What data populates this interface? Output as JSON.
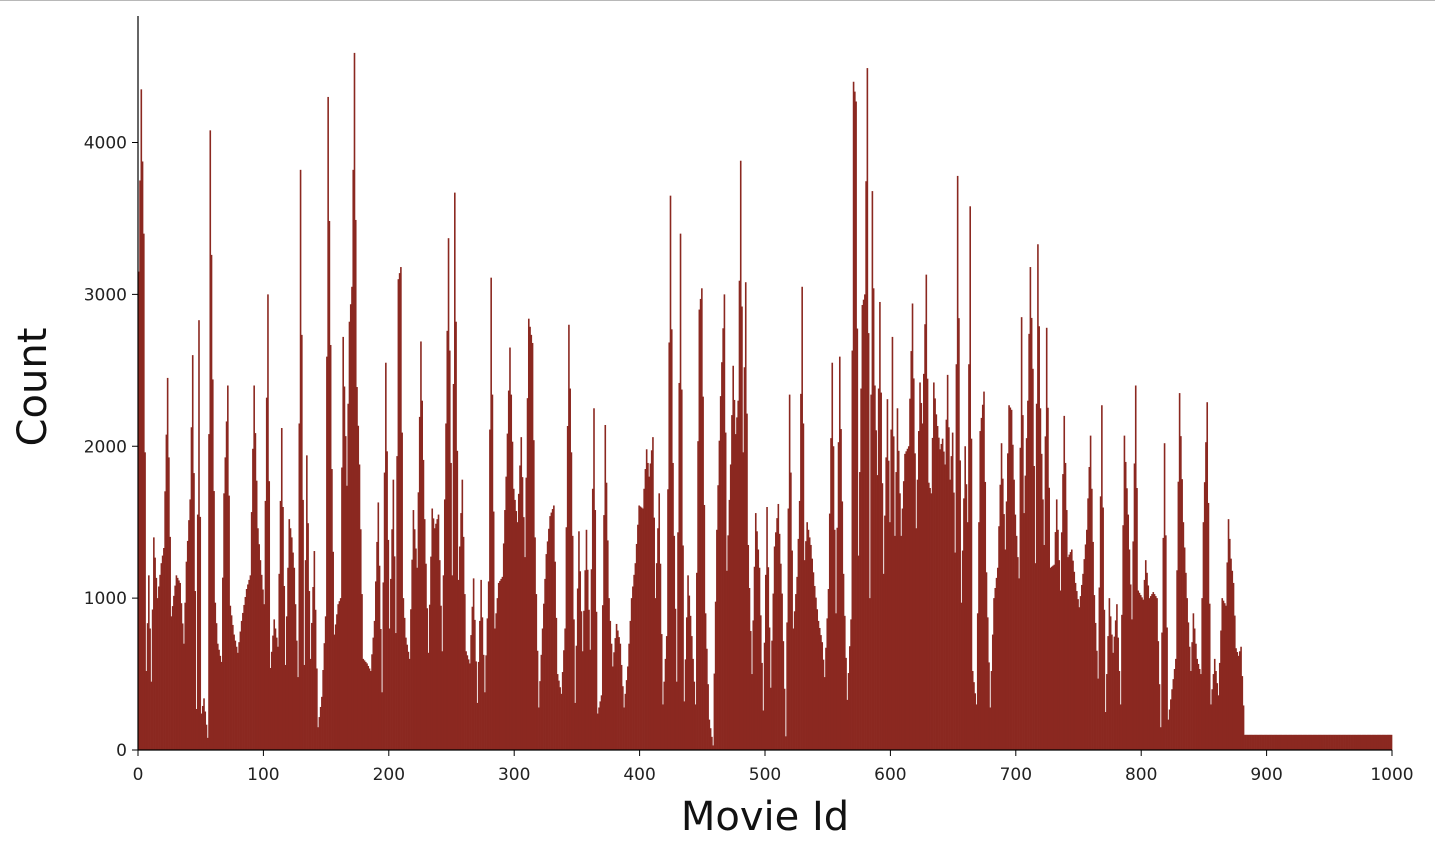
{
  "chart_data": {
    "type": "bar",
    "xlabel": "Movie Id",
    "ylabel": "Count",
    "xlim": [
      0,
      1000
    ],
    "ylim": [
      0,
      4800
    ],
    "xticks": [
      0,
      100,
      200,
      300,
      400,
      500,
      600,
      700,
      800,
      900,
      1000
    ],
    "yticks": [
      0,
      1000,
      2000,
      3000,
      4000
    ],
    "grid": false,
    "bar_color": "#8b2820",
    "anchors": [
      [
        0,
        3150
      ],
      [
        2,
        4350
      ],
      [
        4,
        3400
      ],
      [
        6,
        520
      ],
      [
        8,
        1150
      ],
      [
        10,
        450
      ],
      [
        12,
        1400
      ],
      [
        15,
        1000
      ],
      [
        18,
        1230
      ],
      [
        20,
        1330
      ],
      [
        23,
        2450
      ],
      [
        26,
        880
      ],
      [
        30,
        1150
      ],
      [
        33,
        1100
      ],
      [
        36,
        700
      ],
      [
        38,
        1240
      ],
      [
        41,
        1650
      ],
      [
        43,
        2600
      ],
      [
        46,
        270
      ],
      [
        48,
        2830
      ],
      [
        50,
        240
      ],
      [
        52,
        340
      ],
      [
        55,
        80
      ],
      [
        57,
        4080
      ],
      [
        59,
        2440
      ],
      [
        61,
        970
      ],
      [
        63,
        700
      ],
      [
        66,
        580
      ],
      [
        68,
        1690
      ],
      [
        71,
        2400
      ],
      [
        73,
        950
      ],
      [
        76,
        760
      ],
      [
        79,
        640
      ],
      [
        82,
        850
      ],
      [
        86,
        1060
      ],
      [
        89,
        1150
      ],
      [
        92,
        2400
      ],
      [
        95,
        1460
      ],
      [
        97,
        1250
      ],
      [
        100,
        960
      ],
      [
        103,
        3000
      ],
      [
        105,
        540
      ],
      [
        108,
        860
      ],
      [
        111,
        680
      ],
      [
        114,
        2120
      ],
      [
        117,
        560
      ],
      [
        120,
        1520
      ],
      [
        122,
        1400
      ],
      [
        124,
        1200
      ],
      [
        127,
        480
      ],
      [
        129,
        3820
      ],
      [
        132,
        560
      ],
      [
        134,
        1940
      ],
      [
        137,
        600
      ],
      [
        140,
        1310
      ],
      [
        143,
        150
      ],
      [
        146,
        350
      ],
      [
        149,
        880
      ],
      [
        151,
        4300
      ],
      [
        154,
        1850
      ],
      [
        156,
        760
      ],
      [
        159,
        960
      ],
      [
        161,
        1000
      ],
      [
        163,
        2720
      ],
      [
        166,
        1740
      ],
      [
        168,
        2820
      ],
      [
        170,
        3050
      ],
      [
        172,
        4590
      ],
      [
        174,
        2390
      ],
      [
        176,
        1880
      ],
      [
        179,
        600
      ],
      [
        182,
        570
      ],
      [
        185,
        520
      ],
      [
        188,
        850
      ],
      [
        191,
        1630
      ],
      [
        194,
        380
      ],
      [
        197,
        2550
      ],
      [
        200,
        800
      ],
      [
        203,
        1780
      ],
      [
        205,
        770
      ],
      [
        207,
        3100
      ],
      [
        209,
        3180
      ],
      [
        211,
        1000
      ],
      [
        213,
        740
      ],
      [
        216,
        600
      ],
      [
        219,
        1580
      ],
      [
        222,
        1200
      ],
      [
        225,
        2690
      ],
      [
        228,
        1520
      ],
      [
        231,
        640
      ],
      [
        234,
        1590
      ],
      [
        236,
        1460
      ],
      [
        239,
        1550
      ],
      [
        242,
        650
      ],
      [
        245,
        2150
      ],
      [
        247,
        3370
      ],
      [
        250,
        1150
      ],
      [
        252,
        3670
      ],
      [
        255,
        1120
      ],
      [
        258,
        1780
      ],
      [
        261,
        650
      ],
      [
        264,
        570
      ],
      [
        267,
        1130
      ],
      [
        270,
        310
      ],
      [
        273,
        1120
      ],
      [
        276,
        380
      ],
      [
        279,
        1110
      ],
      [
        281,
        3110
      ],
      [
        284,
        800
      ],
      [
        287,
        1100
      ],
      [
        290,
        1140
      ],
      [
        293,
        1800
      ],
      [
        296,
        2650
      ],
      [
        299,
        1720
      ],
      [
        302,
        1500
      ],
      [
        305,
        2060
      ],
      [
        308,
        1270
      ],
      [
        311,
        2840
      ],
      [
        314,
        2680
      ],
      [
        316,
        1400
      ],
      [
        319,
        280
      ],
      [
        322,
        800
      ],
      [
        325,
        1290
      ],
      [
        328,
        1540
      ],
      [
        331,
        1610
      ],
      [
        334,
        500
      ],
      [
        337,
        370
      ],
      [
        340,
        800
      ],
      [
        343,
        2800
      ],
      [
        345,
        1960
      ],
      [
        348,
        310
      ],
      [
        351,
        1440
      ],
      [
        354,
        650
      ],
      [
        357,
        1450
      ],
      [
        360,
        660
      ],
      [
        363,
        2250
      ],
      [
        366,
        240
      ],
      [
        369,
        360
      ],
      [
        372,
        2140
      ],
      [
        375,
        1000
      ],
      [
        378,
        550
      ],
      [
        381,
        830
      ],
      [
        384,
        700
      ],
      [
        387,
        280
      ],
      [
        390,
        550
      ],
      [
        393,
        1000
      ],
      [
        396,
        1230
      ],
      [
        399,
        1610
      ],
      [
        402,
        1590
      ],
      [
        405,
        1980
      ],
      [
        407,
        1800
      ],
      [
        410,
        2060
      ],
      [
        412,
        1000
      ],
      [
        415,
        1690
      ],
      [
        418,
        300
      ],
      [
        421,
        750
      ],
      [
        424,
        3650
      ],
      [
        426,
        1890
      ],
      [
        429,
        450
      ],
      [
        432,
        3400
      ],
      [
        435,
        320
      ],
      [
        438,
        1150
      ],
      [
        441,
        750
      ],
      [
        444,
        300
      ],
      [
        447,
        2900
      ],
      [
        449,
        3040
      ],
      [
        452,
        900
      ],
      [
        455,
        200
      ],
      [
        458,
        30
      ],
      [
        461,
        1450
      ],
      [
        464,
        2330
      ],
      [
        467,
        3000
      ],
      [
        469,
        1180
      ],
      [
        472,
        1880
      ],
      [
        474,
        2530
      ],
      [
        476,
        2080
      ],
      [
        478,
        2300
      ],
      [
        480,
        3880
      ],
      [
        482,
        1960
      ],
      [
        484,
        3080
      ],
      [
        486,
        1350
      ],
      [
        489,
        500
      ],
      [
        492,
        1560
      ],
      [
        495,
        1200
      ],
      [
        498,
        260
      ],
      [
        501,
        1600
      ],
      [
        504,
        410
      ],
      [
        507,
        1340
      ],
      [
        510,
        1620
      ],
      [
        513,
        1030
      ],
      [
        516,
        90
      ],
      [
        519,
        2340
      ],
      [
        522,
        800
      ],
      [
        525,
        1140
      ],
      [
        527,
        1640
      ],
      [
        529,
        3050
      ],
      [
        531,
        1250
      ],
      [
        533,
        1500
      ],
      [
        536,
        1350
      ],
      [
        539,
        1080
      ],
      [
        542,
        850
      ],
      [
        545,
        710
      ],
      [
        547,
        480
      ],
      [
        550,
        1060
      ],
      [
        553,
        2550
      ],
      [
        556,
        900
      ],
      [
        559,
        2590
      ],
      [
        562,
        1160
      ],
      [
        565,
        330
      ],
      [
        568,
        860
      ],
      [
        570,
        4400
      ],
      [
        572,
        4270
      ],
      [
        574,
        1280
      ],
      [
        577,
        2930
      ],
      [
        579,
        3000
      ],
      [
        581,
        4490
      ],
      [
        583,
        1000
      ],
      [
        585,
        3680
      ],
      [
        587,
        2400
      ],
      [
        589,
        1810
      ],
      [
        591,
        2950
      ],
      [
        594,
        1160
      ],
      [
        597,
        2310
      ],
      [
        599,
        1500
      ],
      [
        601,
        2720
      ],
      [
        603,
        1410
      ],
      [
        605,
        2250
      ],
      [
        608,
        1410
      ],
      [
        611,
        1950
      ],
      [
        614,
        2000
      ],
      [
        617,
        2940
      ],
      [
        620,
        1460
      ],
      [
        623,
        2420
      ],
      [
        625,
        2150
      ],
      [
        628,
        3130
      ],
      [
        630,
        1760
      ],
      [
        632,
        1690
      ],
      [
        634,
        2420
      ],
      [
        636,
        2210
      ],
      [
        639,
        1980
      ],
      [
        641,
        2050
      ],
      [
        643,
        1880
      ],
      [
        645,
        2470
      ],
      [
        647,
        1780
      ],
      [
        649,
        2090
      ],
      [
        651,
        1300
      ],
      [
        653,
        3780
      ],
      [
        656,
        970
      ],
      [
        659,
        2000
      ],
      [
        661,
        1500
      ],
      [
        663,
        3580
      ],
      [
        665,
        520
      ],
      [
        668,
        300
      ],
      [
        671,
        2100
      ],
      [
        674,
        2360
      ],
      [
        676,
        1170
      ],
      [
        679,
        280
      ],
      [
        682,
        1000
      ],
      [
        685,
        1200
      ],
      [
        688,
        2020
      ],
      [
        691,
        1320
      ],
      [
        694,
        2270
      ],
      [
        696,
        2240
      ],
      [
        699,
        1550
      ],
      [
        702,
        1130
      ],
      [
        704,
        2850
      ],
      [
        706,
        1560
      ],
      [
        709,
        2300
      ],
      [
        711,
        3180
      ],
      [
        713,
        2510
      ],
      [
        715,
        1230
      ],
      [
        717,
        3330
      ],
      [
        719,
        2250
      ],
      [
        722,
        1350
      ],
      [
        724,
        2780
      ],
      [
        727,
        1200
      ],
      [
        730,
        1220
      ],
      [
        732,
        1650
      ],
      [
        735,
        1050
      ],
      [
        738,
        2200
      ],
      [
        741,
        1270
      ],
      [
        744,
        1320
      ],
      [
        747,
        1100
      ],
      [
        750,
        940
      ],
      [
        753,
        1160
      ],
      [
        756,
        1450
      ],
      [
        759,
        2070
      ],
      [
        762,
        1020
      ],
      [
        765,
        470
      ],
      [
        768,
        2270
      ],
      [
        771,
        250
      ],
      [
        774,
        1000
      ],
      [
        777,
        640
      ],
      [
        780,
        960
      ],
      [
        783,
        300
      ],
      [
        786,
        2070
      ],
      [
        789,
        1550
      ],
      [
        792,
        860
      ],
      [
        795,
        2400
      ],
      [
        797,
        1050
      ],
      [
        799,
        1020
      ],
      [
        801,
        990
      ],
      [
        803,
        1250
      ],
      [
        806,
        1000
      ],
      [
        809,
        1040
      ],
      [
        812,
        1000
      ],
      [
        815,
        150
      ],
      [
        818,
        2020
      ],
      [
        821,
        200
      ],
      [
        824,
        400
      ],
      [
        827,
        600
      ],
      [
        830,
        2350
      ],
      [
        833,
        1500
      ],
      [
        836,
        1000
      ],
      [
        839,
        520
      ],
      [
        841,
        900
      ],
      [
        844,
        600
      ],
      [
        847,
        500
      ],
      [
        849,
        1500
      ],
      [
        852,
        2290
      ],
      [
        855,
        300
      ],
      [
        858,
        600
      ],
      [
        861,
        360
      ],
      [
        864,
        1000
      ],
      [
        867,
        950
      ],
      [
        869,
        1520
      ],
      [
        871,
        1260
      ],
      [
        873,
        1100
      ],
      [
        875,
        670
      ],
      [
        877,
        620
      ],
      [
        879,
        680
      ],
      [
        882,
        100
      ]
    ]
  }
}
